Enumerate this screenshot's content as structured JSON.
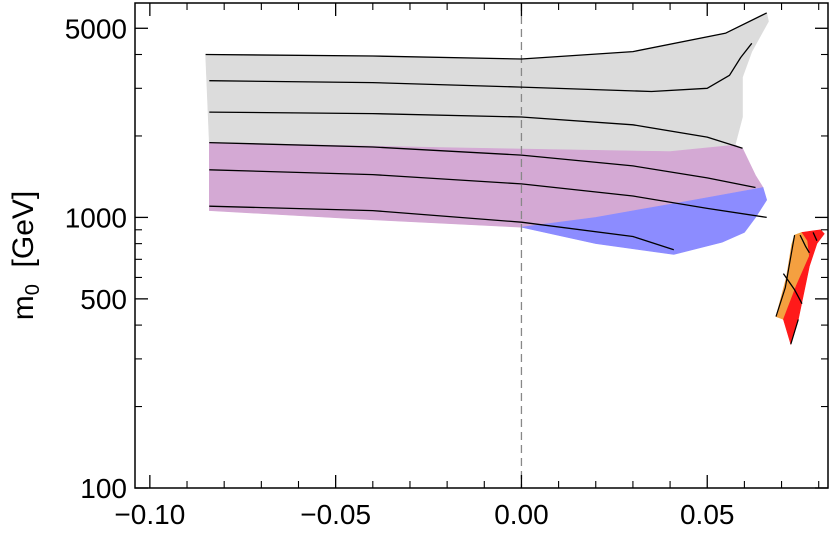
{
  "chart_data": {
    "type": "area",
    "title": "",
    "xlabel": "",
    "ylabel": "m",
    "ylabel_subscript": "0",
    "ylabel_unit": "[GeV]",
    "xlim": [
      -0.104,
      0.0825
    ],
    "ylim": [
      100,
      6200
    ],
    "yscale": "log",
    "x_ticks": [
      -0.1,
      -0.05,
      0.0,
      0.05
    ],
    "x_tick_labels": [
      "−0.10",
      "−0.05",
      "0.00",
      "0.05"
    ],
    "y_ticks": [
      100,
      500,
      1000,
      5000
    ],
    "y_tick_labels": [
      "100",
      "500",
      "1000",
      "5000"
    ],
    "y_minor_ticks": [
      200,
      300,
      400,
      600,
      700,
      800,
      900,
      2000,
      3000,
      4000
    ],
    "reference_line": {
      "x": 0.0,
      "style": "dashed",
      "color": "#888888"
    },
    "grid": false,
    "legend": "none",
    "regions": [
      {
        "name": "",
        "color": "#dcdcdc",
        "points": [
          [
            -0.085,
            4000
          ],
          [
            -0.04,
            3950
          ],
          [
            0.0,
            3850
          ],
          [
            0.03,
            4100
          ],
          [
            0.055,
            4800
          ],
          [
            0.066,
            5700
          ],
          [
            0.0665,
            5300
          ],
          [
            0.062,
            4100
          ],
          [
            0.0595,
            3300
          ],
          [
            0.0595,
            2350
          ],
          [
            0.0575,
            1850
          ],
          [
            0.04,
            1750
          ],
          [
            0.01,
            1780
          ],
          [
            -0.02,
            1810
          ],
          [
            -0.084,
            1890
          ]
        ]
      },
      {
        "name": "",
        "color": "#d4a9d4",
        "points": [
          [
            -0.084,
            1890
          ],
          [
            -0.02,
            1810
          ],
          [
            0.01,
            1780
          ],
          [
            0.04,
            1750
          ],
          [
            0.0575,
            1850
          ],
          [
            0.0595,
            1800
          ],
          [
            0.063,
            1430
          ],
          [
            0.065,
            1290
          ],
          [
            0.045,
            1150
          ],
          [
            0.02,
            1000
          ],
          [
            0.0,
            920
          ],
          [
            -0.04,
            980
          ],
          [
            -0.084,
            1060
          ]
        ]
      },
      {
        "name": "",
        "color": "#8c8cff",
        "points": [
          [
            0.0,
            920
          ],
          [
            0.02,
            1000
          ],
          [
            0.045,
            1150
          ],
          [
            0.065,
            1290
          ],
          [
            0.066,
            1160
          ],
          [
            0.063,
            1000
          ],
          [
            0.06,
            880
          ],
          [
            0.054,
            810
          ],
          [
            0.041,
            730
          ],
          [
            0.02,
            800
          ]
        ]
      },
      {
        "name": "",
        "color": "#7fef7f",
        "points": [
          [
            0.0735,
            860
          ],
          [
            0.0755,
            880
          ],
          [
            0.0755,
            820
          ],
          [
            0.0727,
            790
          ]
        ]
      },
      {
        "name": "",
        "color": "#f4a040",
        "points": [
          [
            0.0755,
            880
          ],
          [
            0.077,
            820
          ],
          [
            0.0775,
            720
          ],
          [
            0.074,
            560
          ],
          [
            0.0705,
            420
          ],
          [
            0.0685,
            430
          ],
          [
            0.0713,
            600
          ],
          [
            0.0727,
            790
          ],
          [
            0.0735,
            860
          ]
        ]
      },
      {
        "name": "",
        "color": "#ff1a1a",
        "points": [
          [
            0.0755,
            880
          ],
          [
            0.078,
            890
          ],
          [
            0.0805,
            900
          ],
          [
            0.0815,
            870
          ],
          [
            0.0795,
            800
          ],
          [
            0.0775,
            660
          ],
          [
            0.0745,
            420
          ],
          [
            0.0725,
            340
          ],
          [
            0.0705,
            420
          ],
          [
            0.074,
            560
          ],
          [
            0.0775,
            720
          ],
          [
            0.077,
            820
          ]
        ]
      }
    ],
    "boundaries": [
      {
        "name": "",
        "color": "#000000",
        "points": [
          [
            0.0685,
            430
          ],
          [
            0.071,
            550
          ],
          [
            0.0735,
            860
          ]
        ]
      },
      {
        "name": "",
        "color": "#000000",
        "points": [
          [
            0.0745,
            420
          ],
          [
            0.0725,
            340
          ]
        ]
      }
    ],
    "series": [
      {
        "name": "",
        "color": "#000000",
        "points": [
          [
            -0.085,
            4000
          ],
          [
            -0.04,
            3950
          ],
          [
            0.0,
            3850
          ],
          [
            0.03,
            4100
          ],
          [
            0.055,
            4800
          ],
          [
            0.066,
            5700
          ]
        ]
      },
      {
        "name": "",
        "color": "#000000",
        "points": [
          [
            -0.084,
            3200
          ],
          [
            -0.04,
            3150
          ],
          [
            0.0,
            3030
          ],
          [
            0.035,
            2920
          ],
          [
            0.05,
            3000
          ],
          [
            0.056,
            3350
          ],
          [
            0.059,
            3900
          ],
          [
            0.062,
            4400
          ]
        ]
      },
      {
        "name": "",
        "color": "#000000",
        "points": [
          [
            -0.084,
            2450
          ],
          [
            -0.04,
            2420
          ],
          [
            0.0,
            2350
          ],
          [
            0.03,
            2200
          ],
          [
            0.05,
            1980
          ],
          [
            0.0595,
            1800
          ]
        ]
      },
      {
        "name": "",
        "color": "#000000",
        "points": [
          [
            -0.084,
            1890
          ],
          [
            -0.04,
            1820
          ],
          [
            0.0,
            1700
          ],
          [
            0.03,
            1550
          ],
          [
            0.05,
            1400
          ],
          [
            0.063,
            1290
          ]
        ]
      },
      {
        "name": "",
        "color": "#000000",
        "points": [
          [
            -0.084,
            1500
          ],
          [
            -0.04,
            1440
          ],
          [
            0.0,
            1330
          ],
          [
            0.03,
            1200
          ],
          [
            0.05,
            1080
          ],
          [
            0.066,
            1000
          ]
        ]
      },
      {
        "name": "",
        "color": "#000000",
        "points": [
          [
            -0.084,
            1100
          ],
          [
            -0.04,
            1060
          ],
          [
            0.0,
            960
          ],
          [
            0.03,
            850
          ],
          [
            0.041,
            760
          ]
        ]
      },
      {
        "name": "",
        "color": "#000000",
        "points": [
          [
            0.0705,
            620
          ],
          [
            0.0735,
            540
          ],
          [
            0.0755,
            480
          ]
        ]
      },
      {
        "name": "",
        "color": "#000000",
        "points": [
          [
            0.075,
            860
          ],
          [
            0.0765,
            780
          ],
          [
            0.0775,
            740
          ]
        ]
      },
      {
        "name": "",
        "color": "#000000",
        "points": [
          [
            0.0785,
            880
          ],
          [
            0.0795,
            820
          ]
        ]
      }
    ]
  }
}
